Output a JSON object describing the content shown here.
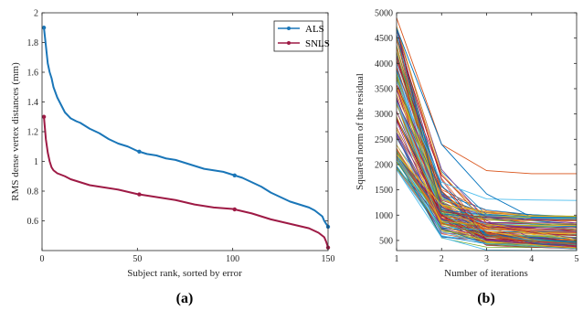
{
  "chart_data": [
    {
      "type": "line",
      "panel_label": "(a)",
      "xlabel": "Subject rank, sorted by error",
      "ylabel": "RMS dense vertex distances (mm)",
      "xlim": [
        0,
        150
      ],
      "ylim": [
        0.4,
        2.0
      ],
      "xticks": [
        0,
        50,
        100,
        150
      ],
      "yticks": [
        0.6,
        0.8,
        1.0,
        1.2,
        1.4,
        1.6,
        1.8,
        2.0
      ],
      "ytick_labels": [
        "0.6",
        "0.8",
        "1",
        "1.2",
        "1.4",
        "1.6",
        "1.8",
        "2"
      ],
      "legend": {
        "placement": "top-right",
        "entries": [
          "ALS",
          "SNLS"
        ]
      },
      "series": [
        {
          "name": "ALS",
          "color": "#1a76b8",
          "marker_x": [
            1,
            51,
            101,
            150
          ],
          "x": [
            1,
            2,
            3,
            4,
            5,
            6,
            8,
            10,
            12,
            15,
            18,
            20,
            25,
            30,
            35,
            40,
            45,
            50,
            55,
            60,
            65,
            70,
            75,
            80,
            85,
            90,
            95,
            100,
            105,
            110,
            115,
            120,
            125,
            130,
            135,
            140,
            143,
            145,
            147,
            148,
            149,
            150
          ],
          "values": [
            1.9,
            1.78,
            1.66,
            1.6,
            1.56,
            1.5,
            1.43,
            1.38,
            1.33,
            1.29,
            1.27,
            1.26,
            1.22,
            1.19,
            1.15,
            1.12,
            1.1,
            1.07,
            1.05,
            1.04,
            1.02,
            1.01,
            0.99,
            0.97,
            0.95,
            0.94,
            0.93,
            0.91,
            0.89,
            0.86,
            0.83,
            0.79,
            0.76,
            0.73,
            0.71,
            0.69,
            0.67,
            0.65,
            0.63,
            0.6,
            0.58,
            0.56
          ]
        },
        {
          "name": "SNLS",
          "color": "#9e1a45",
          "marker_x": [
            1,
            51,
            101,
            150
          ],
          "x": [
            1,
            2,
            3,
            4,
            5,
            6,
            8,
            10,
            12,
            15,
            20,
            25,
            30,
            40,
            50,
            60,
            70,
            80,
            90,
            100,
            110,
            120,
            130,
            140,
            145,
            148,
            149,
            150
          ],
          "values": [
            1.3,
            1.15,
            1.06,
            1.0,
            0.96,
            0.94,
            0.92,
            0.91,
            0.9,
            0.88,
            0.86,
            0.84,
            0.83,
            0.81,
            0.78,
            0.76,
            0.74,
            0.71,
            0.69,
            0.68,
            0.65,
            0.61,
            0.58,
            0.55,
            0.52,
            0.49,
            0.46,
            0.42
          ]
        }
      ]
    },
    {
      "type": "line",
      "panel_label": "(b)",
      "xlabel": "Number of iterations",
      "ylabel": "Squared norm of the residual",
      "xlim": [
        1,
        5
      ],
      "ylim": [
        300,
        5000
      ],
      "xticks": [
        1,
        2,
        3,
        4,
        5
      ],
      "yticks": [
        500,
        1000,
        1500,
        2000,
        2500,
        3000,
        3500,
        4000,
        4500,
        5000
      ],
      "x": [
        1,
        2,
        3,
        4,
        5
      ],
      "highlighted_series": [
        {
          "values": [
            4900,
            2400,
            1880,
            1820,
            1820
          ],
          "color": "#d95319"
        },
        {
          "values": [
            3650,
            1650,
            1320,
            1300,
            1290
          ],
          "color": "#4dbeee"
        },
        {
          "values": [
            4700,
            2400,
            1420,
            960,
            950
          ],
          "color": "#0072bd"
        },
        {
          "values": [
            2200,
            1200,
            1070,
            980,
            970
          ],
          "color": "#edb120"
        },
        {
          "values": [
            1900,
            560,
            310,
            300,
            300
          ],
          "color": "#4dbeee"
        }
      ],
      "num_background_series": 150,
      "start_range": [
        1900,
        4800
      ],
      "end_range": [
        330,
        1000
      ],
      "palette": [
        "#0072bd",
        "#d95319",
        "#edb120",
        "#7e2f8e",
        "#77ac30",
        "#4dbeee",
        "#a2142f"
      ]
    }
  ]
}
